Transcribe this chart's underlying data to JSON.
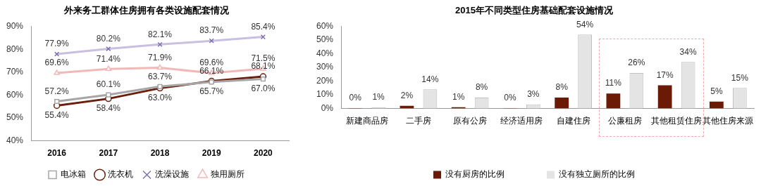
{
  "chart_data": [
    {
      "type": "line",
      "title": "外来务工群体住房拥有各类设施配套情况",
      "categories": [
        "2016",
        "2017",
        "2018",
        "2019",
        "2020"
      ],
      "series": [
        {
          "name": "电冰箱",
          "color": "#a6a6a6",
          "marker": "square",
          "values": [
            57.2,
            60.1,
            63.7,
            65.7,
            67.0
          ],
          "value_labels": [
            "57.2%",
            "60.1%",
            "63.7%",
            "65.7%",
            "67.0%"
          ]
        },
        {
          "name": "洗衣机",
          "color": "#6b1e0c",
          "marker": "circle",
          "values": [
            55.4,
            58.4,
            63.0,
            66.1,
            68.1
          ],
          "value_labels": [
            "55.4%",
            "58.4%",
            "63.0%",
            "66.1%",
            "68.1%"
          ]
        },
        {
          "name": "洗澡设施",
          "color": "#c9bfe0",
          "marker": "cross",
          "values": [
            77.9,
            80.2,
            82.1,
            83.7,
            85.4
          ],
          "value_labels": [
            "77.9%",
            "80.2%",
            "82.1%",
            "83.7%",
            "85.4%"
          ]
        },
        {
          "name": "独用厕所",
          "color": "#f2b8b8",
          "marker": "triangle",
          "values": [
            69.6,
            71.4,
            71.9,
            69.6,
            71.5
          ],
          "value_labels": [
            "69.6%",
            "71.4%",
            "71.9%",
            "69.6%",
            "71.5%"
          ]
        }
      ],
      "ylim": [
        40,
        90
      ],
      "yticks": [
        {
          "value": 40,
          "label": "40%"
        },
        {
          "value": 50,
          "label": "50%"
        },
        {
          "value": 60,
          "label": "60%"
        },
        {
          "value": 70,
          "label": "70%"
        },
        {
          "value": 80,
          "label": "80%"
        },
        {
          "value": 90,
          "label": "90%"
        }
      ],
      "grid": false,
      "legend": "bottom"
    },
    {
      "type": "bar",
      "title": "2015年不同类型住房基础配套设施情况",
      "categories": [
        "新建商品房",
        "二手房",
        "原有公房",
        "经济适用房",
        "自建住房",
        "公廉租房",
        "其他租赁住房",
        "其他住房来源"
      ],
      "series": [
        {
          "name": "没有厨房的比例",
          "color": "#6b1a05",
          "values": [
            0.3,
            2,
            1,
            0.3,
            8,
            11,
            17,
            5
          ],
          "value_labels": [
            "0%",
            "2%",
            "1%",
            "0%",
            "8%",
            "11%",
            "17%",
            "5%"
          ]
        },
        {
          "name": "没有独立厕所的比例",
          "color": "#e4e4e4",
          "values": [
            1,
            14,
            8,
            3,
            54,
            26,
            34,
            15
          ],
          "value_labels": [
            "1%",
            "14%",
            "8%",
            "3%",
            "54%",
            "26%",
            "34%",
            "15%"
          ]
        }
      ],
      "ylim": [
        0,
        60
      ],
      "yticks": [
        {
          "value": 0,
          "label": "0%"
        },
        {
          "value": 10,
          "label": "10%"
        },
        {
          "value": 20,
          "label": "20%"
        },
        {
          "value": 30,
          "label": "30%"
        },
        {
          "value": 40,
          "label": "40%"
        },
        {
          "value": 50,
          "label": "50%"
        },
        {
          "value": 60,
          "label": "60%"
        }
      ],
      "grid": false,
      "legend": "bottom"
    }
  ]
}
